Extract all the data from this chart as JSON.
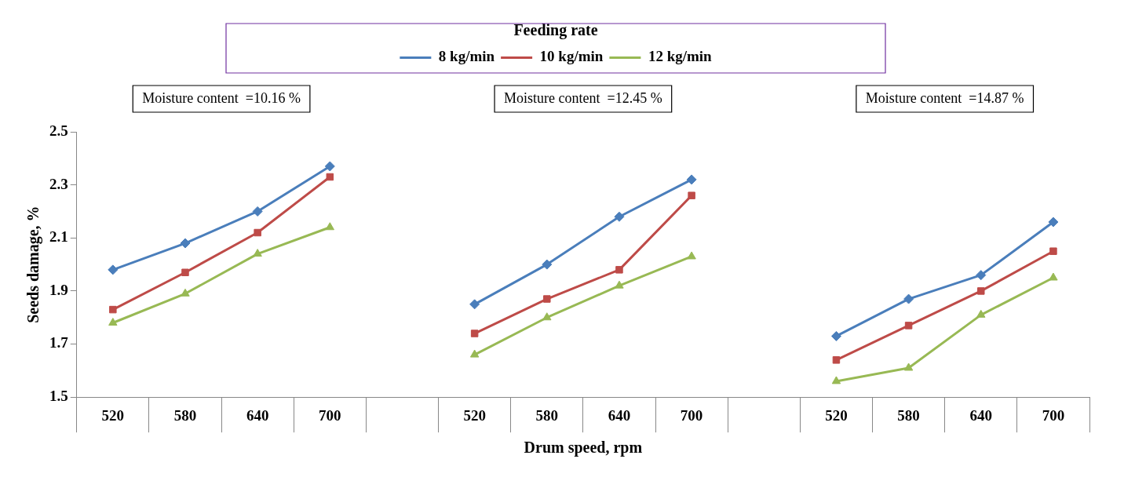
{
  "chart_data": {
    "type": "line",
    "xlabel": "Drum speed, rpm",
    "ylabel": "Seeds damage, %",
    "legend_title": "Feeding rate",
    "legend": "top",
    "categories": [
      "520",
      "580",
      "640",
      "700",
      null,
      "520",
      "580",
      "640",
      "700",
      null,
      "520",
      "580",
      "640",
      "700"
    ],
    "series": [
      {
        "name": "8 kg/min",
        "color": "#4a7ebb",
        "marker": "diamond",
        "values": [
          1.98,
          2.08,
          2.2,
          2.37,
          null,
          1.85,
          2.0,
          2.18,
          2.32,
          null,
          1.73,
          1.87,
          1.96,
          2.16
        ]
      },
      {
        "name": "10 kg/min",
        "color": "#be4b48",
        "marker": "square",
        "values": [
          1.83,
          1.97,
          2.12,
          2.33,
          null,
          1.74,
          1.87,
          1.98,
          2.26,
          null,
          1.64,
          1.77,
          1.9,
          2.05
        ]
      },
      {
        "name": "12 kg/min",
        "color": "#98b954",
        "marker": "triangle",
        "values": [
          1.78,
          1.89,
          2.04,
          2.14,
          null,
          1.66,
          1.8,
          1.92,
          2.03,
          null,
          1.56,
          1.61,
          1.81,
          1.95
        ]
      }
    ],
    "ylim": [
      1.5,
      2.5
    ],
    "yticks": [
      1.5,
      1.7,
      1.9,
      2.1,
      2.3,
      2.5
    ],
    "grid": false,
    "annotations": [
      "Moisture content  =10.16 %",
      "Moisture content  =12.45 %",
      "Moisture content  =14.87 %"
    ]
  }
}
